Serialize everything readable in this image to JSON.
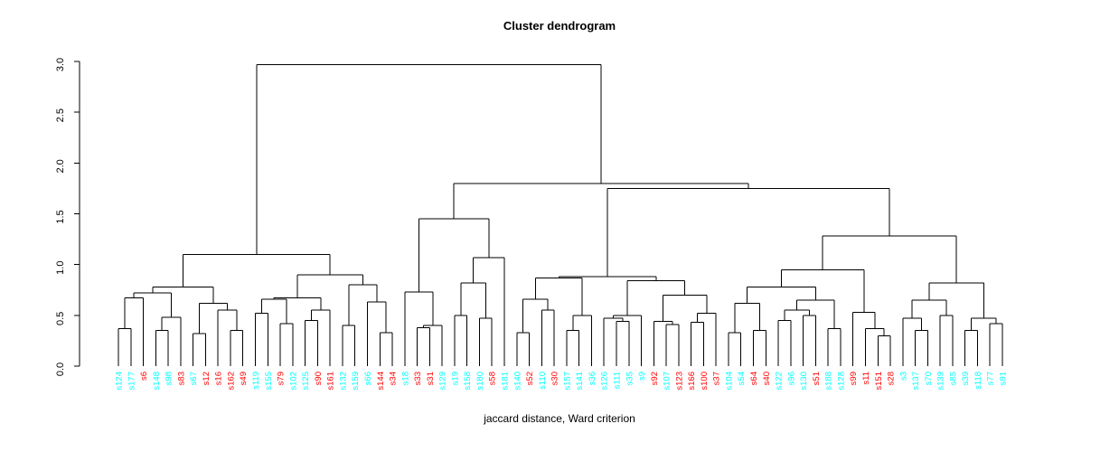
{
  "title": "Cluster dendrogram",
  "xlabel": "jaccard distance, Ward criterion",
  "colors": {
    "red": "#ff0000",
    "cyan": "#00ffff",
    "line": "#000000",
    "background": "#ffffff"
  },
  "chart_data": {
    "type": "dendrogram",
    "title": "Cluster dendrogram",
    "xlabel": "jaccard distance, Ward criterion",
    "ylabel": "",
    "ylim": [
      0,
      3.0
    ],
    "yticks": [
      "0.0",
      "0.5",
      "1.0",
      "1.5",
      "2.0",
      "2.5",
      "3.0"
    ],
    "grid": false,
    "legend": "none",
    "leaf_count": 72,
    "leaves": [
      {
        "label": "s124",
        "color": "cyan"
      },
      {
        "label": "s177",
        "color": "cyan"
      },
      {
        "label": "s6",
        "color": "red"
      },
      {
        "label": "s148",
        "color": "cyan"
      },
      {
        "label": "s98",
        "color": "cyan"
      },
      {
        "label": "s83",
        "color": "red"
      },
      {
        "label": "s67",
        "color": "cyan"
      },
      {
        "label": "s12",
        "color": "red"
      },
      {
        "label": "s16",
        "color": "red"
      },
      {
        "label": "s162",
        "color": "red"
      },
      {
        "label": "s49",
        "color": "red"
      },
      {
        "label": "s119",
        "color": "cyan"
      },
      {
        "label": "s155",
        "color": "cyan"
      },
      {
        "label": "s79",
        "color": "red"
      },
      {
        "label": "s102",
        "color": "cyan"
      },
      {
        "label": "s125",
        "color": "cyan"
      },
      {
        "label": "s90",
        "color": "red"
      },
      {
        "label": "s161",
        "color": "red"
      },
      {
        "label": "s132",
        "color": "cyan"
      },
      {
        "label": "s159",
        "color": "cyan"
      },
      {
        "label": "s66",
        "color": "cyan"
      },
      {
        "label": "s144",
        "color": "red"
      },
      {
        "label": "s34",
        "color": "red"
      },
      {
        "label": "s18",
        "color": "cyan"
      },
      {
        "label": "s33",
        "color": "red"
      },
      {
        "label": "s31",
        "color": "red"
      },
      {
        "label": "s129",
        "color": "cyan"
      },
      {
        "label": "s19",
        "color": "cyan"
      },
      {
        "label": "s158",
        "color": "cyan"
      },
      {
        "label": "s180",
        "color": "cyan"
      },
      {
        "label": "s58",
        "color": "red"
      },
      {
        "label": "s181",
        "color": "cyan"
      },
      {
        "label": "s140",
        "color": "cyan"
      },
      {
        "label": "s52",
        "color": "red"
      },
      {
        "label": "s110",
        "color": "cyan"
      },
      {
        "label": "s30",
        "color": "red"
      },
      {
        "label": "s157",
        "color": "cyan"
      },
      {
        "label": "s141",
        "color": "cyan"
      },
      {
        "label": "s36",
        "color": "cyan"
      },
      {
        "label": "s126",
        "color": "cyan"
      },
      {
        "label": "s111",
        "color": "cyan"
      },
      {
        "label": "s35",
        "color": "cyan"
      },
      {
        "label": "s9",
        "color": "cyan"
      },
      {
        "label": "s92",
        "color": "red"
      },
      {
        "label": "s107",
        "color": "cyan"
      },
      {
        "label": "s123",
        "color": "red"
      },
      {
        "label": "s166",
        "color": "red"
      },
      {
        "label": "s100",
        "color": "red"
      },
      {
        "label": "s37",
        "color": "red"
      },
      {
        "label": "s104",
        "color": "cyan"
      },
      {
        "label": "s54",
        "color": "cyan"
      },
      {
        "label": "s64",
        "color": "red"
      },
      {
        "label": "s40",
        "color": "red"
      },
      {
        "label": "s122",
        "color": "cyan"
      },
      {
        "label": "s96",
        "color": "cyan"
      },
      {
        "label": "s130",
        "color": "cyan"
      },
      {
        "label": "s51",
        "color": "red"
      },
      {
        "label": "s188",
        "color": "cyan"
      },
      {
        "label": "s128",
        "color": "cyan"
      },
      {
        "label": "s99",
        "color": "red"
      },
      {
        "label": "s11",
        "color": "red"
      },
      {
        "label": "s151",
        "color": "red"
      },
      {
        "label": "s28",
        "color": "red"
      },
      {
        "label": "s3",
        "color": "cyan"
      },
      {
        "label": "s137",
        "color": "cyan"
      },
      {
        "label": "s70",
        "color": "cyan"
      },
      {
        "label": "s139",
        "color": "cyan"
      },
      {
        "label": "s85",
        "color": "cyan"
      },
      {
        "label": "s39",
        "color": "cyan"
      },
      {
        "label": "s118",
        "color": "cyan"
      },
      {
        "label": "s77",
        "color": "cyan"
      },
      {
        "label": "s91",
        "color": "cyan"
      }
    ],
    "tree": {
      "h": 2.97,
      "c": [
        {
          "h": 1.1,
          "c": [
            {
              "h": 0.78,
              "c": [
                {
                  "h": 0.72,
                  "c": [
                    {
                      "h": 0.67,
                      "c": [
                        {
                          "h": 0.37,
                          "c": [
                            "s124",
                            "s177"
                          ]
                        },
                        "s6"
                      ]
                    },
                    {
                      "h": 0.48,
                      "c": [
                        {
                          "h": 0.35,
                          "c": [
                            "s148",
                            "s98"
                          ]
                        },
                        "s83"
                      ]
                    }
                  ]
                },
                {
                  "h": 0.62,
                  "c": [
                    {
                      "h": 0.32,
                      "c": [
                        "s67",
                        "s12"
                      ]
                    },
                    {
                      "h": 0.55,
                      "c": [
                        "s16",
                        {
                          "h": 0.35,
                          "c": [
                            "s162",
                            "s49"
                          ]
                        }
                      ]
                    }
                  ]
                }
              ]
            },
            {
              "h": 0.9,
              "c": [
                {
                  "h": 0.67,
                  "c": [
                    {
                      "h": 0.66,
                      "c": [
                        {
                          "h": 0.52,
                          "c": [
                            "s119",
                            "s155"
                          ]
                        },
                        {
                          "h": 0.42,
                          "c": [
                            "s79",
                            "s102"
                          ]
                        }
                      ]
                    },
                    {
                      "h": 0.55,
                      "c": [
                        {
                          "h": 0.45,
                          "c": [
                            "s125",
                            "s90"
                          ]
                        },
                        "s161"
                      ]
                    }
                  ]
                },
                {
                  "h": 0.8,
                  "c": [
                    {
                      "h": 0.4,
                      "c": [
                        "s132",
                        "s159"
                      ]
                    },
                    {
                      "h": 0.63,
                      "c": [
                        "s66",
                        {
                          "h": 0.33,
                          "c": [
                            "s144",
                            "s34"
                          ]
                        }
                      ]
                    }
                  ]
                }
              ]
            }
          ]
        },
        {
          "h": 1.8,
          "c": [
            {
              "h": 1.45,
              "c": [
                {
                  "h": 0.73,
                  "c": [
                    "s18",
                    {
                      "h": 0.4,
                      "c": [
                        {
                          "h": 0.38,
                          "c": [
                            "s33",
                            "s31"
                          ]
                        },
                        "s129"
                      ]
                    }
                  ]
                },
                {
                  "h": 1.07,
                  "c": [
                    {
                      "h": 0.82,
                      "c": [
                        {
                          "h": 0.5,
                          "c": [
                            "s19",
                            "s158"
                          ]
                        },
                        {
                          "h": 0.47,
                          "c": [
                            "s180",
                            "s58"
                          ]
                        }
                      ]
                    },
                    "s181"
                  ]
                }
              ]
            },
            {
              "h": 1.75,
              "c": [
                {
                  "h": 0.88,
                  "c": [
                    {
                      "h": 0.87,
                      "c": [
                        {
                          "h": 0.66,
                          "c": [
                            {
                              "h": 0.33,
                              "c": [
                                "s140",
                                "s52"
                              ]
                            },
                            {
                              "h": 0.55,
                              "c": [
                                "s110",
                                "s30"
                              ]
                            }
                          ]
                        },
                        {
                          "h": 0.5,
                          "c": [
                            {
                              "h": 0.35,
                              "c": [
                                "s157",
                                "s141"
                              ]
                            },
                            "s36"
                          ]
                        }
                      ]
                    },
                    {
                      "h": 0.84,
                      "c": [
                        {
                          "h": 0.5,
                          "c": [
                            {
                              "h": 0.47,
                              "c": [
                                "s126",
                                {
                                  "h": 0.44,
                                  "c": [
                                    "s111",
                                    "s35"
                                  ]
                                }
                              ]
                            },
                            "s9"
                          ]
                        },
                        {
                          "h": 0.7,
                          "c": [
                            {
                              "h": 0.44,
                              "c": [
                                "s92",
                                {
                                  "h": 0.41,
                                  "c": [
                                    "s107",
                                    "s123"
                                  ]
                                }
                              ]
                            },
                            {
                              "h": 0.52,
                              "c": [
                                {
                                  "h": 0.43,
                                  "c": [
                                    "s166",
                                    "s100"
                                  ]
                                },
                                "s37"
                              ]
                            }
                          ]
                        }
                      ]
                    }
                  ]
                },
                {
                  "h": 1.28,
                  "c": [
                    {
                      "h": 0.95,
                      "c": [
                        {
                          "h": 0.78,
                          "c": [
                            {
                              "h": 0.62,
                              "c": [
                                {
                                  "h": 0.33,
                                  "c": [
                                    "s104",
                                    "s54"
                                  ]
                                },
                                {
                                  "h": 0.35,
                                  "c": [
                                    "s64",
                                    "s40"
                                  ]
                                }
                              ]
                            },
                            {
                              "h": 0.65,
                              "c": [
                                {
                                  "h": 0.55,
                                  "c": [
                                    {
                                      "h": 0.45,
                                      "c": [
                                        "s122",
                                        "s96"
                                      ]
                                    },
                                    {
                                      "h": 0.5,
                                      "c": [
                                        "s130",
                                        "s51"
                                      ]
                                    }
                                  ]
                                },
                                {
                                  "h": 0.37,
                                  "c": [
                                    "s188",
                                    "s128"
                                  ]
                                }
                              ]
                            }
                          ]
                        },
                        {
                          "h": 0.53,
                          "c": [
                            "s99",
                            {
                              "h": 0.37,
                              "c": [
                                "s11",
                                {
                                  "h": 0.3,
                                  "c": [
                                    "s151",
                                    "s28"
                                  ]
                                }
                              ]
                            }
                          ]
                        }
                      ]
                    },
                    {
                      "h": 0.82,
                      "c": [
                        {
                          "h": 0.65,
                          "c": [
                            {
                              "h": 0.47,
                              "c": [
                                "s3",
                                {
                                  "h": 0.35,
                                  "c": [
                                    "s137",
                                    "s70"
                                  ]
                                }
                              ]
                            },
                            {
                              "h": 0.5,
                              "c": [
                                "s139",
                                "s85"
                              ]
                            }
                          ]
                        },
                        {
                          "h": 0.47,
                          "c": [
                            {
                              "h": 0.35,
                              "c": [
                                "s39",
                                "s118"
                              ]
                            },
                            {
                              "h": 0.42,
                              "c": [
                                "s77",
                                "s91"
                              ]
                            }
                          ]
                        }
                      ]
                    }
                  ]
                }
              ]
            }
          ]
        }
      ]
    }
  }
}
